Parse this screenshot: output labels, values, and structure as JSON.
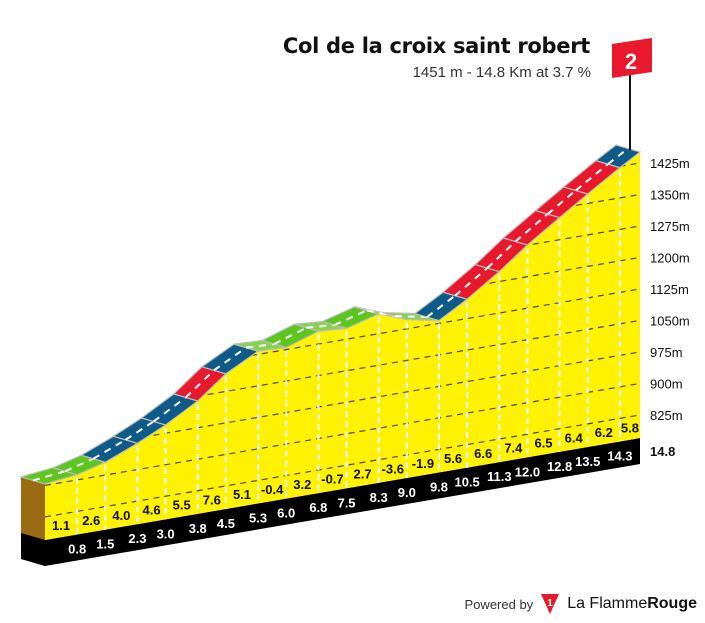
{
  "header": {
    "title": "Col de la croix saint robert",
    "subtitle": "1451 m - 14.8 Km at 3.7 %",
    "category": "2"
  },
  "footer": {
    "powered_by": "Powered by",
    "brand_light": "La Flamme",
    "brand_bold": "Rouge",
    "logo_digit": "1"
  },
  "colors": {
    "profile_fill": "#fff200",
    "easy": "#5cc51e",
    "descent": "#86d24e",
    "medium": "#0e5a88",
    "hard": "#e8192c",
    "base": "#000000",
    "side": "#9a6b12"
  },
  "chart_data": {
    "type": "area",
    "title": "Col de la croix saint robert",
    "summit_m": 1451,
    "length_km": 14.8,
    "avg_gradient_pct": 3.7,
    "distances_km": [
      0.8,
      1.5,
      2.3,
      3.0,
      3.8,
      4.5,
      5.3,
      6.0,
      6.8,
      7.5,
      8.3,
      9.0,
      9.8,
      10.5,
      11.3,
      12.0,
      12.8,
      13.5,
      14.3,
      14.8
    ],
    "distance_labels": [
      "0.8",
      "1.5",
      "2.3",
      "3.0",
      "3.8",
      "4.5",
      "5.3",
      "6.0",
      "6.8",
      "7.5",
      "8.3",
      "9.0",
      "9.8",
      "10.5",
      "11.3",
      "12.0",
      "12.8",
      "13.5",
      "14.3",
      "14.8"
    ],
    "gradients_pct": [
      1.1,
      2.6,
      4.0,
      4.6,
      5.5,
      7.6,
      5.1,
      -0.4,
      3.2,
      -0.7,
      2.7,
      -3.6,
      -1.9,
      5.6,
      6.6,
      7.4,
      6.5,
      6.4,
      6.2,
      5.8
    ],
    "gradient_labels": [
      "1.1",
      "2.6",
      "4.0",
      "4.6",
      "5.5",
      "7.6",
      "5.1",
      "-0.4",
      "3.2",
      "-0.7",
      "2.7",
      "-3.6",
      "-1.9",
      "5.6",
      "6.6",
      "7.4",
      "6.5",
      "6.4",
      "6.2",
      "5.8"
    ],
    "y_ticks": [
      825,
      900,
      975,
      1050,
      1125,
      1200,
      1275,
      1350,
      1425
    ],
    "y_tick_labels": [
      "825m",
      "900m",
      "975m",
      "1050m",
      "1125m",
      "1200m",
      "1275m",
      "1350m",
      "1425m"
    ],
    "grid": true
  }
}
